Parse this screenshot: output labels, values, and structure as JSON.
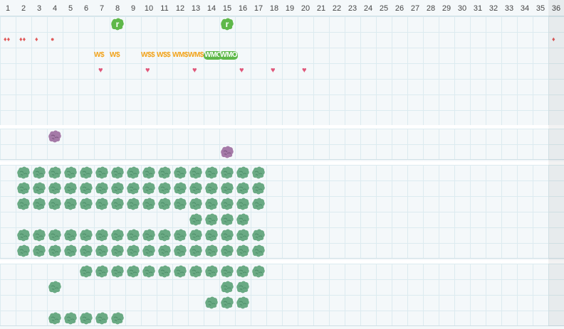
{
  "columns": [
    "1",
    "2",
    "3",
    "4",
    "5",
    "6",
    "7",
    "8",
    "9",
    "10",
    "11",
    "12",
    "13",
    "14",
    "15",
    "16",
    "17",
    "18",
    "19",
    "20",
    "21",
    "22",
    "23",
    "24",
    "25",
    "26",
    "27",
    "28",
    "29",
    "30",
    "31",
    "32",
    "33",
    "34",
    "35",
    "36"
  ],
  "colors": {
    "bush": "#6aaa84",
    "bush_dark": "#4e8f6a",
    "purple_bush": "#a57aa8",
    "green_tile": "#5fb84a",
    "gold_text": "#f2a31b",
    "heart": "#e0577a",
    "drop": "#e05a5a",
    "grid_line": "#dcebf0",
    "background": "#f4f8fa"
  },
  "top_tiles": [
    {
      "col": 8,
      "letter": "r"
    },
    {
      "col": 15,
      "letter": "r"
    }
  ],
  "drops": [
    {
      "col": 1,
      "glyph": "♦♦"
    },
    {
      "col": 2,
      "glyph": "♦♦"
    },
    {
      "col": 3,
      "glyph": "♦"
    },
    {
      "col": 4,
      "glyph": "●"
    },
    {
      "col": 36,
      "glyph": "♦"
    }
  ],
  "tokens": [
    {
      "col": 7,
      "text": "W$",
      "style": "gold"
    },
    {
      "col": 8,
      "text": "W$",
      "style": "gold"
    },
    {
      "col": 10,
      "text": "W$$",
      "style": "gold"
    },
    {
      "col": 11,
      "text": "W$$",
      "style": "gold"
    },
    {
      "col": 12,
      "text": "WM$",
      "style": "gold"
    },
    {
      "col": 13,
      "text": "WM$",
      "style": "gold"
    },
    {
      "col": 14,
      "text": "WMO",
      "style": "green"
    },
    {
      "col": 15,
      "text": "WMO",
      "style": "green"
    }
  ],
  "hearts": [
    {
      "col": 7,
      "glyph": "♥"
    },
    {
      "col": 10,
      "glyph": "♥"
    },
    {
      "col": 13,
      "glyph": "♥"
    },
    {
      "col": 16,
      "glyph": "♥"
    },
    {
      "col": 18,
      "glyph": "♥"
    },
    {
      "col": 20,
      "glyph": "♥"
    }
  ],
  "panels": [
    {
      "name": "panel-top",
      "rows": 7,
      "sprites": []
    },
    {
      "name": "panel-purple",
      "rows": 2,
      "sprites": [
        {
          "row": 0,
          "cols": [
            4
          ],
          "kind": "purple"
        },
        {
          "row": 1,
          "cols": [
            15
          ],
          "kind": "purple"
        }
      ]
    },
    {
      "name": "panel-bush-main",
      "rows": 6,
      "sprites": [
        {
          "row": 0,
          "cols": [
            2,
            3,
            4,
            5,
            6,
            7,
            8,
            9,
            10,
            11,
            12,
            13,
            14,
            15,
            16,
            17
          ],
          "kind": "bush"
        },
        {
          "row": 1,
          "cols": [
            2,
            3,
            4,
            5,
            6,
            7,
            8,
            9,
            10,
            11,
            12,
            13,
            14,
            15,
            16,
            17
          ],
          "kind": "bush"
        },
        {
          "row": 2,
          "cols": [
            2,
            3,
            4,
            5,
            6,
            7,
            8,
            9,
            10,
            11,
            12,
            13,
            14,
            15,
            16,
            17
          ],
          "kind": "bush"
        },
        {
          "row": 3,
          "cols": [
            13,
            14,
            15,
            16
          ],
          "kind": "bush"
        },
        {
          "row": 4,
          "cols": [
            2,
            3,
            4,
            5,
            6,
            7,
            8,
            9,
            10,
            11,
            12,
            13,
            14,
            15,
            16,
            17
          ],
          "kind": "bush"
        },
        {
          "row": 5,
          "cols": [
            2,
            3,
            4,
            5,
            6,
            7,
            8,
            9,
            10,
            11,
            12,
            13,
            14,
            15,
            16,
            17
          ],
          "kind": "bush"
        }
      ]
    },
    {
      "name": "panel-bush-lower",
      "rows": 4,
      "sprites": [
        {
          "row": 0,
          "cols": [
            6,
            7,
            8,
            9,
            10,
            11,
            12,
            13,
            14,
            15,
            16,
            17
          ],
          "kind": "bush"
        },
        {
          "row": 1,
          "cols": [
            4,
            15,
            16
          ],
          "kind": "bush"
        },
        {
          "row": 2,
          "cols": [
            14,
            15,
            16
          ],
          "kind": "bush"
        },
        {
          "row": 3,
          "cols": [
            4,
            5,
            6,
            7,
            8
          ],
          "kind": "bush"
        }
      ]
    }
  ]
}
